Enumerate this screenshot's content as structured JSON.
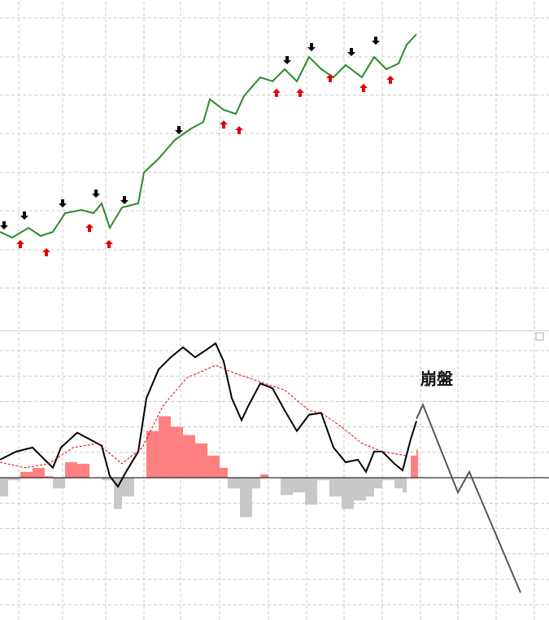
{
  "chart_data": [
    {
      "type": "line",
      "xlim": [
        0,
        675
      ],
      "ylim": [
        0,
        406
      ],
      "xticks": [
        23,
        77,
        130,
        177,
        222,
        270,
        330,
        377,
        423,
        470,
        517,
        563,
        610,
        657
      ],
      "yticks": [
        52,
        99,
        147,
        194,
        242,
        289,
        336,
        384
      ],
      "grid": true,
      "series": [
        {
          "color": "#2a8a2a",
          "x": [
            0,
            15,
            35,
            50,
            65,
            80,
            100,
            115,
            125,
            135,
            150,
            170,
            177,
            195,
            215,
            235,
            250,
            258,
            275,
            290,
            300,
            320,
            335,
            350,
            365,
            380,
            395,
            410,
            425,
            445,
            460,
            475,
            490,
            500,
            512
          ],
          "values": [
            121,
            114,
            126,
            116,
            121,
            144,
            148,
            144,
            156,
            126,
            151,
            156,
            194,
            211,
            234,
            248,
            256,
            284,
            271,
            266,
            288,
            311,
            306,
            321,
            306,
            336,
            321,
            311,
            326,
            311,
            336,
            321,
            328,
            351,
            364
          ]
        }
      ],
      "markers": [
        {
          "color": "#000000",
          "direction": "down",
          "x": [
            5,
            30,
            77,
            118,
            153,
            220,
            353,
            383,
            432,
            462
          ],
          "values": [
            129,
            141,
            156,
            168,
            160,
            246,
            332,
            348,
            342,
            356
          ]
        },
        {
          "color": "#e00000",
          "direction": "up",
          "x": [
            25,
            57,
            110,
            134,
            275,
            294,
            340,
            369,
            406,
            447,
            480
          ],
          "values": [
            106,
            96,
            126,
            106,
            253,
            246,
            292,
            292,
            310,
            298,
            308
          ]
        }
      ]
    },
    {
      "type": "oscillator",
      "xlim": [
        0,
        675
      ],
      "ylim": [
        -5.6,
        5.8
      ],
      "xticks": [
        23,
        77,
        130,
        177,
        222,
        270,
        330,
        377,
        423,
        470,
        517,
        563,
        610,
        657
      ],
      "yticks": [
        -5,
        -4,
        -3,
        -2,
        -1,
        0,
        1,
        2,
        3,
        4,
        5
      ],
      "grid": true,
      "histogram": {
        "positive_color": "#ff8080",
        "negative_color": "#c8c8c8",
        "x": [
          0,
          10,
          25,
          40,
          55,
          65,
          80,
          95,
          110,
          125,
          140,
          150,
          165,
          180,
          195,
          210,
          225,
          240,
          255,
          270,
          280,
          295,
          310,
          320,
          330,
          345,
          360,
          375,
          390,
          405,
          420,
          435,
          450,
          460,
          470,
          485,
          495,
          500,
          505,
          512
        ],
        "values": [
          -0.74,
          -0.1,
          0.23,
          0.39,
          0.06,
          -0.42,
          0.61,
          0.55,
          0,
          -0.1,
          -1.23,
          -0.74,
          0,
          1.84,
          2.42,
          2.0,
          1.68,
          1.35,
          0.87,
          0.39,
          -0.42,
          -1.55,
          -0.42,
          0.13,
          0,
          -0.68,
          -0.58,
          -1.06,
          -0.1,
          -0.74,
          -1.23,
          -0.9,
          -0.74,
          -0.42,
          -0.1,
          -0.42,
          -0.58,
          0,
          0.87,
          1.1
        ]
      },
      "series": [
        {
          "color": "#000000",
          "style": "solid",
          "x": [
            0,
            20,
            40,
            55,
            65,
            75,
            95,
            110,
            125,
            135,
            145,
            155,
            170,
            180,
            195,
            210,
            225,
            240,
            255,
            265,
            275,
            285,
            297,
            305,
            320,
            335,
            350,
            365,
            380,
            395,
            410,
            425,
            440,
            450,
            460,
            470,
            485,
            495,
            505,
            512
          ],
          "values": [
            0.71,
            1.03,
            1.19,
            0.71,
            0.39,
            1.19,
            1.77,
            1.52,
            1.26,
            0.06,
            -0.35,
            0.23,
            1.03,
            3.13,
            4.26,
            4.74,
            5.13,
            4.74,
            5.06,
            5.29,
            4.58,
            3.13,
            2.26,
            2.81,
            3.71,
            3.52,
            2.65,
            1.84,
            2.48,
            2.55,
            1.19,
            0.61,
            0.71,
            0.23,
            1.03,
            1.03,
            0.55,
            0.29,
            1.52,
            2.23
          ]
        },
        {
          "color": "#e00000",
          "style": "dashed",
          "x": [
            0,
            30,
            60,
            90,
            120,
            150,
            175,
            200,
            230,
            265,
            290,
            320,
            350,
            380,
            395,
            420,
            445,
            470,
            500
          ],
          "values": [
            0.61,
            0.39,
            0.55,
            1.19,
            1.35,
            0.55,
            1.19,
            2.81,
            3.94,
            4.42,
            4.1,
            3.77,
            3.45,
            2.65,
            2.55,
            2,
            1.35,
            1.03,
            0.87
          ]
        },
        {
          "color": "#555555",
          "style": "solid",
          "x": [
            512,
            520,
            563,
            577,
            640
          ],
          "values": [
            2.32,
            2.87,
            -0.58,
            0.23,
            -4.52
          ]
        }
      ],
      "annotation": {
        "text": "崩盤",
        "x": 537,
        "y": 3.85
      }
    }
  ]
}
